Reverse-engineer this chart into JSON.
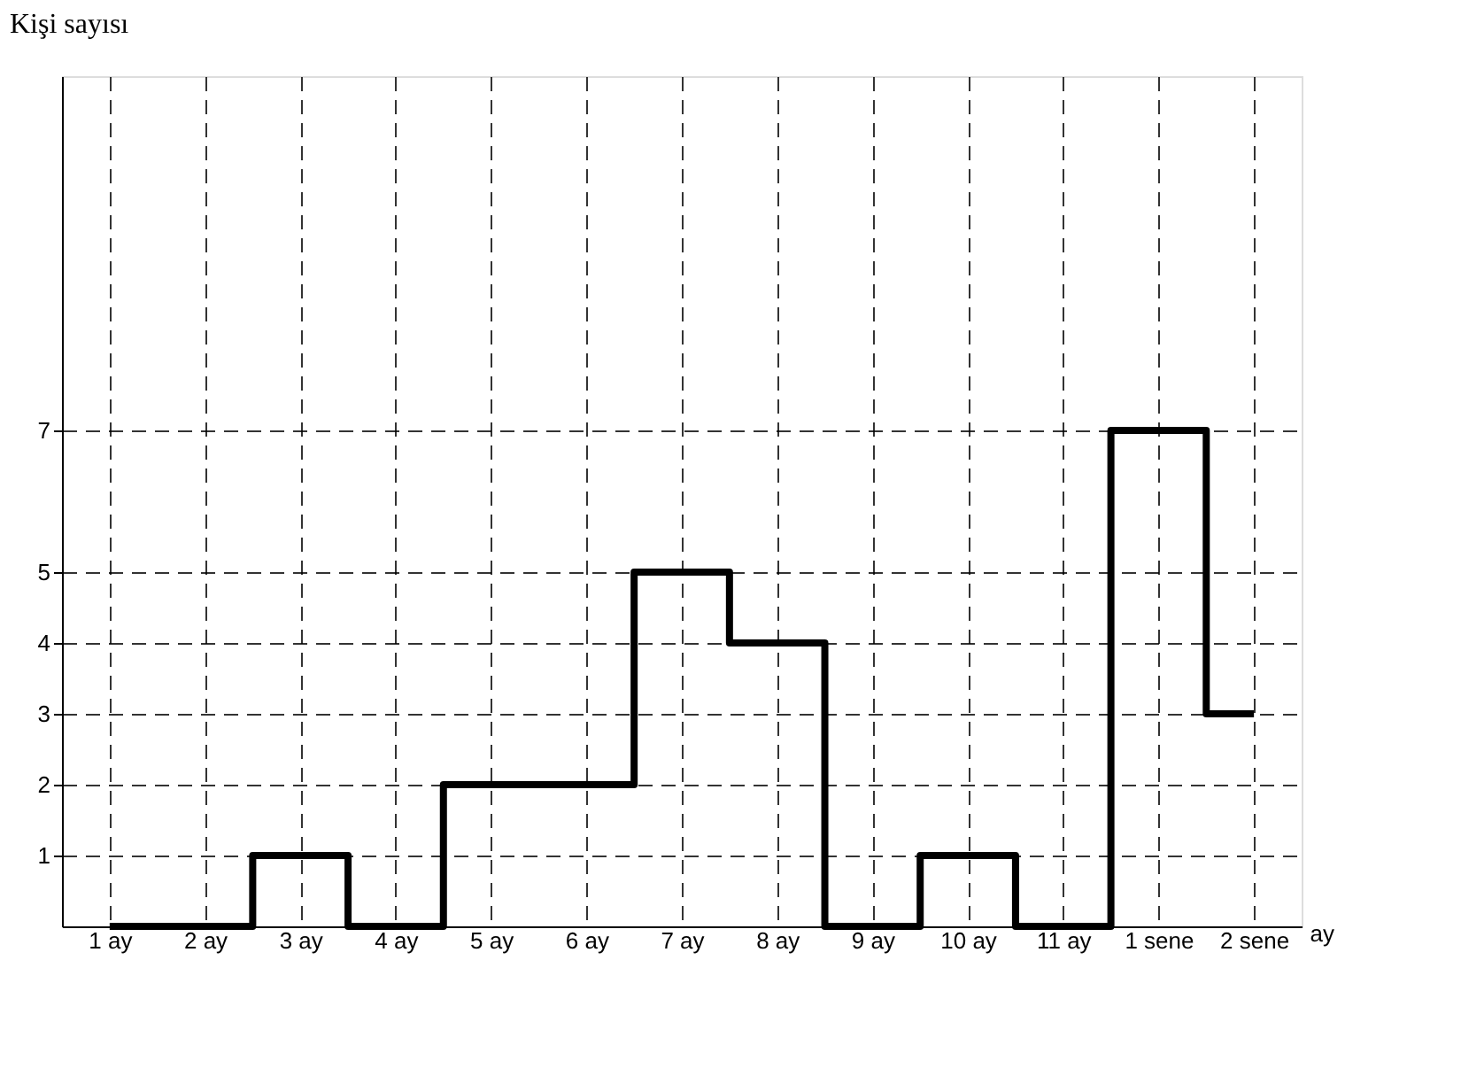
{
  "chart_data": {
    "type": "step",
    "ylabel": "Kişi sayısı",
    "xlabel": "ay",
    "categories": [
      "1 ay",
      "2 ay",
      "3 ay",
      "4 ay",
      "5 ay",
      "6 ay",
      "7 ay",
      "8 ay",
      "9 ay",
      "10 ay",
      "11 ay",
      "1 sene",
      "2 sene"
    ],
    "values": [
      0,
      0,
      1,
      0,
      2,
      2,
      5,
      4,
      0,
      1,
      0,
      7,
      3
    ],
    "color": "#000000",
    "ylim": [
      0,
      12
    ],
    "yticks": [
      1,
      2,
      3,
      4,
      5,
      7
    ],
    "grid": true
  }
}
